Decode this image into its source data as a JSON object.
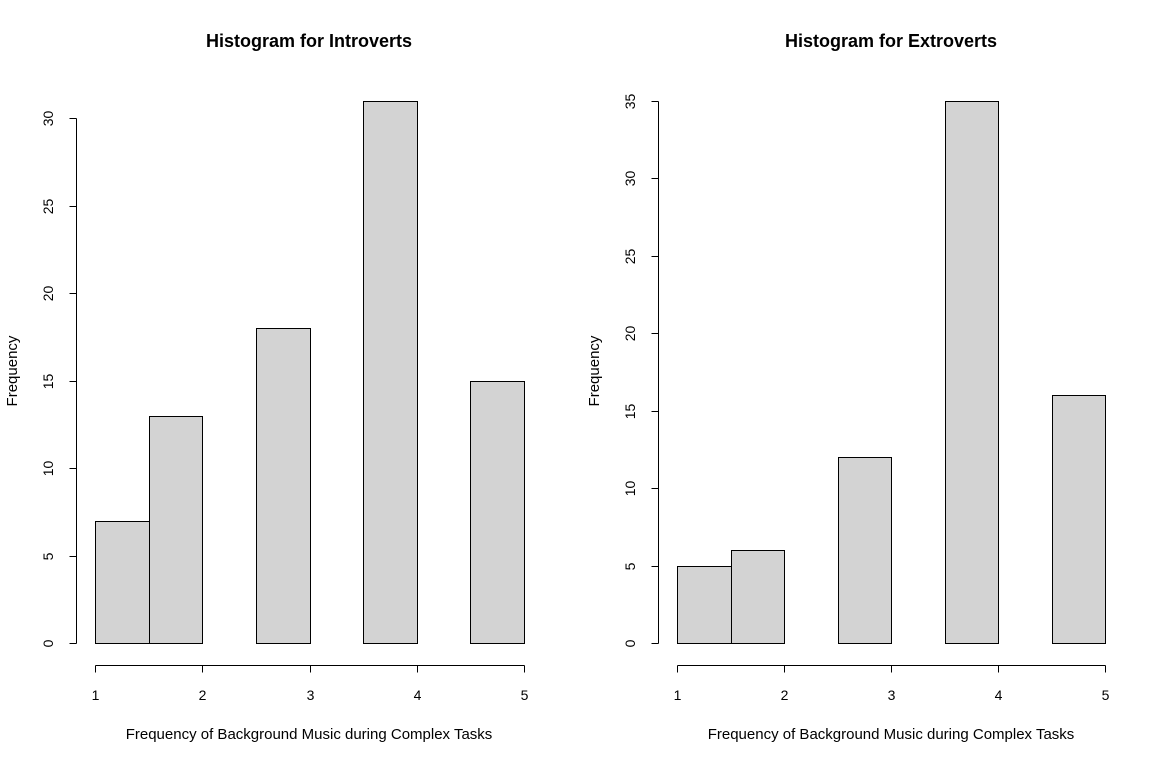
{
  "chart_data": [
    {
      "type": "bar",
      "title": "Histogram for Introverts",
      "xlabel": "Frequency of Background Music during Complex Tasks",
      "ylabel": "Frequency",
      "bins": [
        [
          1.0,
          1.5
        ],
        [
          1.5,
          2.0
        ],
        [
          2.0,
          2.5
        ],
        [
          2.5,
          3.0
        ],
        [
          3.0,
          3.5
        ],
        [
          3.5,
          4.0
        ],
        [
          4.0,
          4.5
        ],
        [
          4.5,
          5.0
        ]
      ],
      "values": [
        7,
        13,
        0,
        18,
        0,
        31,
        0,
        15
      ],
      "xlim": [
        1,
        5
      ],
      "ylim": [
        0,
        31
      ],
      "xticks": [
        1,
        2,
        3,
        4,
        5
      ],
      "yticks": [
        0,
        5,
        10,
        15,
        20,
        25,
        30
      ]
    },
    {
      "type": "bar",
      "title": "Histogram for Extroverts",
      "xlabel": "Frequency of Background Music during Complex Tasks",
      "ylabel": "Frequency",
      "bins": [
        [
          1.0,
          1.5
        ],
        [
          1.5,
          2.0
        ],
        [
          2.0,
          2.5
        ],
        [
          2.5,
          3.0
        ],
        [
          3.0,
          3.5
        ],
        [
          3.5,
          4.0
        ],
        [
          4.0,
          4.5
        ],
        [
          4.5,
          5.0
        ]
      ],
      "values": [
        5,
        6,
        0,
        12,
        0,
        35,
        0,
        16
      ],
      "xlim": [
        1,
        5
      ],
      "ylim": [
        0,
        35
      ],
      "xticks": [
        1,
        2,
        3,
        4,
        5
      ],
      "yticks": [
        0,
        5,
        10,
        15,
        20,
        25,
        30,
        35
      ]
    }
  ]
}
